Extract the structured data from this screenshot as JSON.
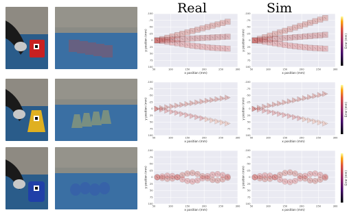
{
  "titles": {
    "real": "Real",
    "sim": "Sim"
  },
  "rows": [
    {
      "object": "red-cube",
      "object_color": "#c92020",
      "marker": "square"
    },
    {
      "object": "yellow-triangle",
      "object_color": "#e0b020",
      "marker": "triangle"
    },
    {
      "object": "blue-cylinder",
      "object_color": "#1f3fa8",
      "marker": "circle"
    }
  ],
  "axes": {
    "xlabel": "x position (mm)",
    "ylabel": "y position (mm)",
    "xlim": [
      50,
      300
    ],
    "ylim": [
      -100,
      100
    ],
    "xticks": [
      "50",
      "100",
      "150",
      "200",
      "250",
      "300"
    ],
    "yticks": [
      "-100",
      "-75",
      "-50",
      "-25",
      "0",
      "25",
      "50",
      "75",
      "100"
    ],
    "colorbar_label": "Error (mm)",
    "colormap": "inferno"
  },
  "chart_data": [
    {
      "type": "scatter",
      "panel": "real-square",
      "marker": "square",
      "series": [
        {
          "x": [
            60,
            75,
            90,
            105,
            120,
            135,
            150,
            165,
            180,
            195,
            210,
            225,
            240,
            255,
            270
          ],
          "y": [
            0,
            -5,
            -10,
            -15,
            -20,
            -25,
            -30,
            -35,
            -40,
            -45,
            -50,
            -55,
            -60,
            -65,
            -70
          ]
        },
        {
          "x": [
            60,
            75,
            90,
            105,
            120,
            135,
            150,
            165,
            180,
            195,
            210,
            225,
            240,
            255,
            270
          ],
          "y": [
            0,
            2,
            5,
            8,
            11,
            14,
            17,
            20,
            22,
            24,
            26,
            28,
            29,
            30,
            31
          ]
        },
        {
          "x": [
            60,
            75,
            90,
            105,
            120,
            135,
            150,
            165,
            180,
            195,
            210,
            225,
            240,
            255,
            270
          ],
          "y": [
            0,
            -1,
            -2,
            -3,
            -4,
            -5,
            -6,
            -7,
            -8,
            -9,
            -10,
            -11,
            -12,
            -13,
            -14
          ]
        }
      ]
    },
    {
      "type": "scatter",
      "panel": "sim-square",
      "marker": "square",
      "series": [
        {
          "x": [
            60,
            75,
            90,
            105,
            120,
            135,
            150,
            165,
            180,
            195,
            210,
            225,
            240,
            255,
            270
          ],
          "y": [
            0,
            -6,
            -12,
            -18,
            -24,
            -30,
            -36,
            -42,
            -48,
            -54,
            -60,
            -66,
            -72,
            -78,
            -84
          ]
        },
        {
          "x": [
            60,
            75,
            90,
            105,
            120,
            135,
            150,
            165,
            180,
            195,
            210,
            225,
            240,
            255,
            270
          ],
          "y": [
            0,
            2,
            5,
            8,
            11,
            14,
            17,
            20,
            22,
            24,
            26,
            28,
            29,
            30,
            31
          ]
        },
        {
          "x": [
            60,
            75,
            90,
            105,
            120,
            135,
            150,
            165,
            180,
            195,
            210,
            225,
            240,
            255,
            270
          ],
          "y": [
            0,
            -1,
            -3,
            -4,
            -6,
            -7,
            -9,
            -10,
            -12,
            -13,
            -15,
            -16,
            -18,
            -19,
            -21
          ]
        }
      ]
    },
    {
      "type": "scatter",
      "panel": "real-triangle",
      "marker": "triangle",
      "series": [
        {
          "x": [
            60,
            75,
            90,
            105,
            120,
            135,
            150,
            165,
            180,
            195,
            210,
            225,
            240,
            255,
            270
          ],
          "y": [
            0,
            -3,
            -6,
            -9,
            -12,
            -15,
            -18,
            -21,
            -24,
            -27,
            -30,
            -33,
            -36,
            -39,
            -42
          ]
        },
        {
          "x": [
            60,
            75,
            90,
            105,
            120,
            135,
            150,
            165,
            180,
            195,
            210,
            225,
            240,
            255,
            270
          ],
          "y": [
            0,
            3,
            7,
            11,
            15,
            19,
            23,
            27,
            31,
            35,
            39,
            43,
            47,
            51,
            55
          ]
        }
      ]
    },
    {
      "type": "scatter",
      "panel": "sim-triangle",
      "marker": "triangle",
      "series": [
        {
          "x": [
            60,
            75,
            90,
            105,
            120,
            135,
            150,
            165,
            180,
            195,
            210,
            225,
            240,
            255,
            270
          ],
          "y": [
            0,
            -4,
            -8,
            -12,
            -16,
            -20,
            -24,
            -28,
            -32,
            -36,
            -40,
            -44,
            -48,
            -52,
            -56
          ]
        },
        {
          "x": [
            60,
            75,
            90,
            105,
            120,
            135,
            150,
            165,
            180,
            195,
            210,
            225,
            240,
            255,
            270
          ],
          "y": [
            0,
            3,
            7,
            11,
            15,
            19,
            23,
            27,
            31,
            35,
            39,
            43,
            47,
            51,
            55
          ]
        }
      ]
    },
    {
      "type": "scatter",
      "panel": "real-circle",
      "marker": "circle",
      "series": [
        {
          "x": [
            60,
            75,
            90,
            105,
            120,
            135,
            150,
            165,
            180,
            195,
            210,
            225,
            240,
            255,
            270
          ],
          "y": [
            0,
            3,
            6,
            5,
            0,
            -8,
            -14,
            -16,
            -12,
            -4,
            4,
            10,
            12,
            8,
            2
          ]
        },
        {
          "x": [
            60,
            75,
            90,
            105,
            120,
            135,
            150,
            165,
            180,
            195,
            210,
            225,
            240,
            255,
            270
          ],
          "y": [
            0,
            -3,
            -6,
            -5,
            0,
            8,
            14,
            16,
            12,
            4,
            -4,
            -10,
            -12,
            -8,
            -2
          ]
        }
      ]
    },
    {
      "type": "scatter",
      "panel": "sim-circle",
      "marker": "circle",
      "series": [
        {
          "x": [
            60,
            75,
            90,
            105,
            120,
            135,
            150,
            165,
            180,
            195,
            210,
            225,
            240,
            255,
            270
          ],
          "y": [
            0,
            4,
            7,
            6,
            0,
            -9,
            -16,
            -18,
            -14,
            -5,
            5,
            12,
            14,
            9,
            2
          ]
        },
        {
          "x": [
            60,
            75,
            90,
            105,
            120,
            135,
            150,
            165,
            180,
            195,
            210,
            225,
            240,
            255,
            270
          ],
          "y": [
            0,
            -4,
            -7,
            -6,
            0,
            9,
            16,
            18,
            14,
            5,
            -5,
            -12,
            -14,
            -9,
            -2
          ]
        }
      ]
    }
  ]
}
